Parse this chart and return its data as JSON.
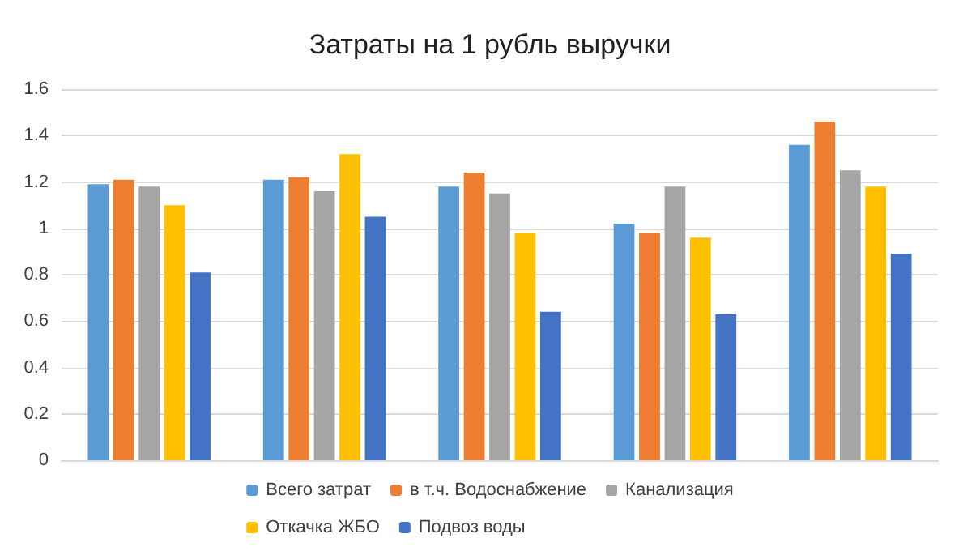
{
  "chart_data": {
    "type": "bar",
    "title": "Затраты на 1 рубль выручки",
    "categories": [
      null,
      null,
      null,
      null,
      null
    ],
    "series": [
      {
        "name": "Всего затрат",
        "color": "#5b9bd5",
        "values": [
          1.19,
          1.21,
          1.18,
          1.02,
          1.36
        ]
      },
      {
        "name": "в т.ч. Водоснабжение",
        "color": "#ed7d31",
        "values": [
          1.21,
          1.22,
          1.24,
          0.98,
          1.46
        ]
      },
      {
        "name": "Канализация",
        "color": "#a5a5a5",
        "values": [
          1.18,
          1.16,
          1.15,
          1.18,
          1.25
        ]
      },
      {
        "name": "Откачка ЖБО",
        "color": "#ffc000",
        "values": [
          1.1,
          1.32,
          0.98,
          0.96,
          1.18
        ]
      },
      {
        "name": "Подвоз воды",
        "color": "#4472c4",
        "values": [
          0.81,
          1.05,
          0.64,
          0.63,
          0.89
        ]
      }
    ],
    "ylim": [
      0,
      1.6
    ],
    "yticks": [
      0,
      0.2,
      0.4,
      0.6,
      0.8,
      1,
      1.2,
      1.4,
      1.6
    ],
    "grid": "y",
    "legend": "bottom"
  }
}
